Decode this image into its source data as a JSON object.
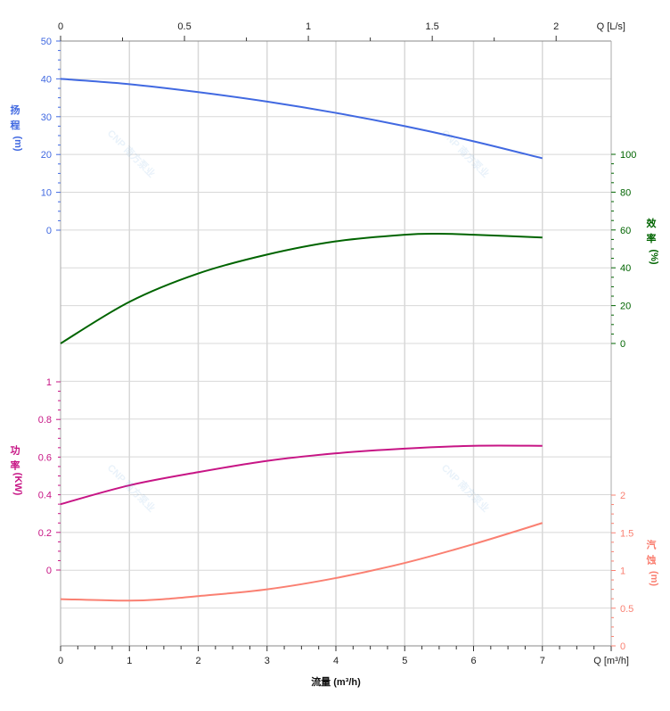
{
  "chart_data": {
    "type": "line",
    "x_axis": {
      "label": "流量 (m³/h)",
      "unit_label": "Q [m³/h]",
      "range": [
        0,
        8
      ],
      "ticks": [
        0,
        1,
        2,
        3,
        4,
        5,
        6,
        7
      ]
    },
    "x2_axis": {
      "unit_label": "Q [L/s]",
      "ticks": [
        "0",
        "0.5",
        "1",
        "1.5",
        "2"
      ],
      "tick_values": [
        0,
        0.5,
        1,
        1.5,
        2
      ]
    },
    "grid": true,
    "watermark": "CNP 南方泵业",
    "series": [
      {
        "name": "扬程 (m)",
        "axis": "left-top",
        "color": "#4169e1",
        "range": [
          0,
          50
        ],
        "ticks": [
          0,
          10,
          20,
          30,
          40,
          50
        ],
        "x": [
          0,
          1,
          2,
          3,
          4,
          5,
          6,
          7
        ],
        "y": [
          40,
          38.6,
          36.5,
          34,
          31,
          27.5,
          23.5,
          19
        ]
      },
      {
        "name": "效率 (%)",
        "axis": "right-top",
        "color": "#006400",
        "range": [
          0,
          100
        ],
        "ticks": [
          0,
          20,
          40,
          60,
          80,
          100
        ],
        "x": [
          0,
          1,
          2,
          3,
          4,
          5,
          5.5,
          6,
          7
        ],
        "y": [
          0,
          22,
          37,
          47,
          54,
          57.5,
          58,
          57.5,
          56
        ]
      },
      {
        "name": "功率 (KW)",
        "axis": "left-bottom",
        "color": "#c71585",
        "range": [
          0,
          1
        ],
        "ticks": [
          0,
          0.2,
          0.4,
          0.6,
          0.8,
          1
        ],
        "x": [
          0,
          1,
          2,
          3,
          4,
          5,
          6,
          7
        ],
        "y": [
          0.35,
          0.45,
          0.52,
          0.58,
          0.62,
          0.645,
          0.66,
          0.66
        ]
      },
      {
        "name": "汽蚀 (m)",
        "axis": "right-bottom",
        "color": "#fa8072",
        "range": [
          0,
          2
        ],
        "ticks": [
          0,
          0.5,
          1,
          1.5,
          2
        ],
        "x": [
          0,
          1,
          1.5,
          2,
          3,
          4,
          5,
          6,
          7
        ],
        "y": [
          0.62,
          0.6,
          0.62,
          0.66,
          0.75,
          0.9,
          1.1,
          1.35,
          1.63
        ]
      }
    ]
  }
}
